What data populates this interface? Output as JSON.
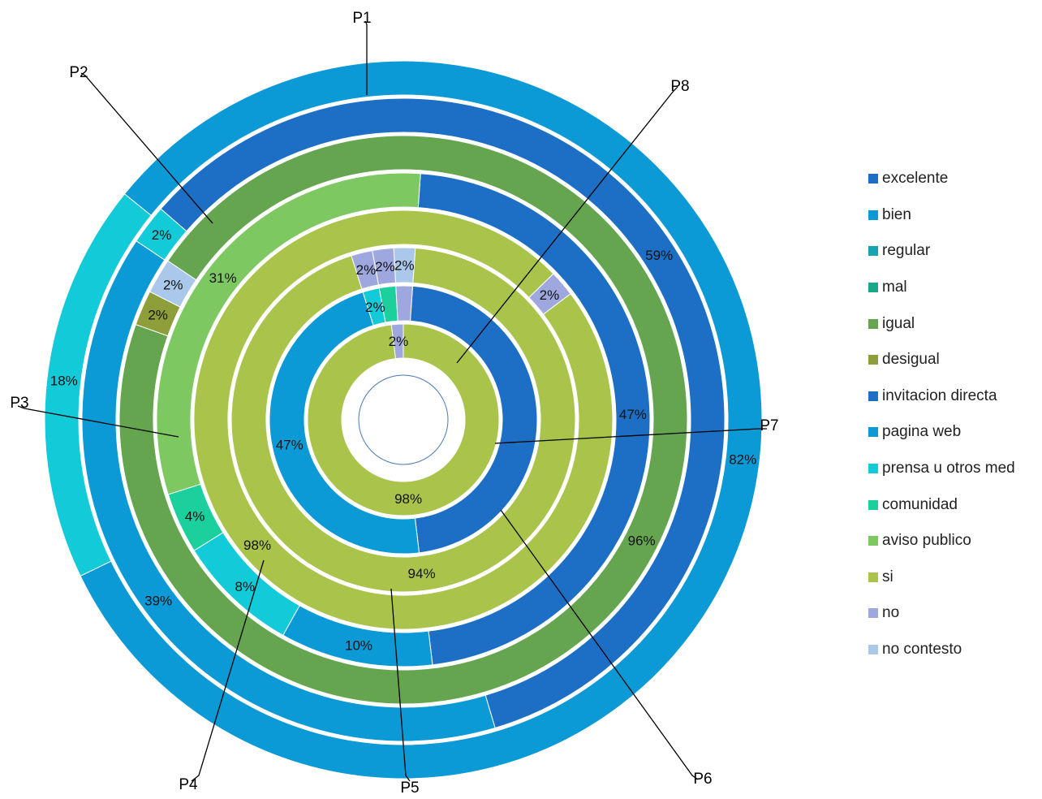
{
  "chart_data": {
    "type": "doughnut",
    "legend_position": "right",
    "categories": [
      {
        "key": "excelente",
        "label": "excelente",
        "color": "#1D6FC6"
      },
      {
        "key": "bien",
        "label": "bien",
        "color": "#0B9AD6"
      },
      {
        "key": "regular",
        "label": "regular",
        "color": "#16A3B2"
      },
      {
        "key": "mal",
        "label": "mal",
        "color": "#16A888"
      },
      {
        "key": "igual",
        "label": "igual",
        "color": "#66A550"
      },
      {
        "key": "desigual",
        "label": "desigual",
        "color": "#8D9E3B"
      },
      {
        "key": "invitacion_directa",
        "label": "invitacion directa",
        "color": "#1D6FC6"
      },
      {
        "key": "pagina_web",
        "label": "pagina web",
        "color": "#0B9AD6"
      },
      {
        "key": "prensa",
        "label": "prensa u otros med",
        "color": "#12CAD8"
      },
      {
        "key": "comunidad",
        "label": "comunidad",
        "color": "#1CD09E"
      },
      {
        "key": "aviso_publico",
        "label": "aviso publico",
        "color": "#7DC861"
      },
      {
        "key": "si",
        "label": "si",
        "color": "#A9C34B"
      },
      {
        "key": "no",
        "label": "no",
        "color": "#9FA8DE"
      },
      {
        "key": "no_contesto",
        "label": "no contesto",
        "color": "#A9C8EA"
      }
    ],
    "series": [
      {
        "name": "P1",
        "segments": [
          {
            "category": "excelente",
            "value": 0,
            "label": ""
          },
          {
            "category": "bien",
            "value": 82,
            "label": "82%"
          },
          {
            "category": "prensa",
            "value": 18,
            "label": "18%"
          }
        ]
      },
      {
        "name": "P2",
        "segments": [
          {
            "category": "excelente",
            "value": 59,
            "label": "59%"
          },
          {
            "category": "bien",
            "value": 39,
            "label": "39%"
          },
          {
            "category": "prensa",
            "value": 2,
            "label": "2%"
          }
        ]
      },
      {
        "name": "P3",
        "segments": [
          {
            "category": "igual",
            "value": 96,
            "label": "96%"
          },
          {
            "category": "desigual",
            "value": 2,
            "label": "2%"
          },
          {
            "category": "no_contesto",
            "value": 2,
            "label": "2%"
          }
        ]
      },
      {
        "name": "P4",
        "segments": [
          {
            "category": "invitacion_directa",
            "value": 47,
            "label": "47%"
          },
          {
            "category": "pagina_web",
            "value": 10,
            "label": "10%"
          },
          {
            "category": "prensa",
            "value": 8,
            "label": "8%"
          },
          {
            "category": "comunidad",
            "value": 4,
            "label": "4%"
          },
          {
            "category": "aviso_publico",
            "value": 31,
            "label": "31%"
          }
        ]
      },
      {
        "name": "P5",
        "segments": [
          {
            "category": "si",
            "value": 98,
            "label": "98%"
          },
          {
            "category": "no",
            "value": 2,
            "label": "2%"
          }
        ]
      },
      {
        "name": "P6",
        "segments": [
          {
            "category": "si",
            "value": 94,
            "label": "94%"
          },
          {
            "category": "no",
            "value": 2,
            "label": "2%"
          },
          {
            "category": "no",
            "value": 2,
            "label": "2%"
          },
          {
            "category": "no_contesto",
            "value": 2,
            "label": "2%"
          }
        ]
      },
      {
        "name": "P7",
        "segments": [
          {
            "category": "invitacion_directa",
            "value": 47,
            "label": ""
          },
          {
            "category": "pagina_web",
            "value": 47,
            "label": "47%"
          },
          {
            "category": "prensa",
            "value": 2,
            "label": "2%"
          },
          {
            "category": "comunidad",
            "value": 2,
            "label": ""
          },
          {
            "category": "no",
            "value": 2,
            "label": ""
          }
        ]
      },
      {
        "name": "P8",
        "segments": [
          {
            "category": "si",
            "value": 98,
            "label": "98%"
          },
          {
            "category": "no",
            "value": 2,
            "label": "2%"
          }
        ]
      }
    ]
  }
}
